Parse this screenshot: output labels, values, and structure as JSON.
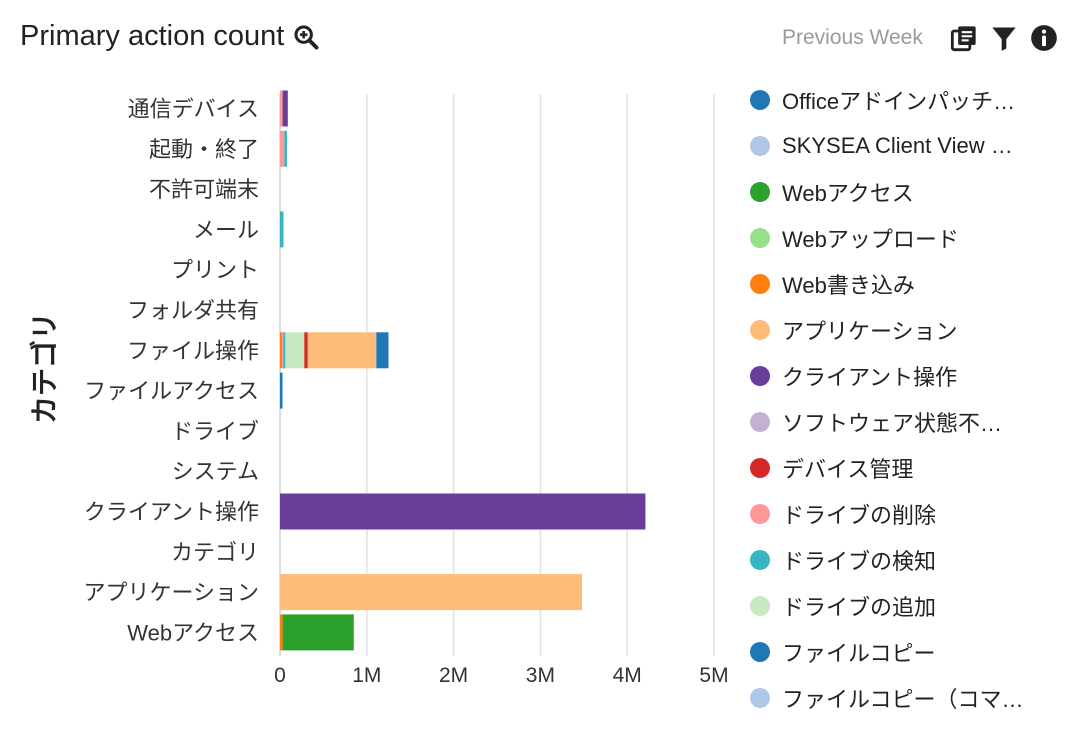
{
  "header": {
    "title": "Primary action count",
    "period": "Previous Week",
    "icons": [
      "zoom-in-icon",
      "copy-icon",
      "filter-icon",
      "info-icon"
    ],
    "icon_color": "#222222"
  },
  "chart_data": {
    "type": "bar",
    "orientation": "horizontal",
    "stacked": true,
    "ylabel": "カテゴリ",
    "xlabel": "",
    "xlim": [
      0,
      5000000
    ],
    "xticks": [
      0,
      1000000,
      2000000,
      3000000,
      4000000,
      5000000
    ],
    "xtick_labels": [
      "0",
      "1M",
      "2M",
      "3M",
      "4M",
      "5M"
    ],
    "grid": "vertical",
    "legend_position": "right",
    "categories": [
      "通信デバイス",
      "起動・終了",
      "不許可端末",
      "メール",
      "プリント",
      "フォルダ共有",
      "ファイル操作",
      "ファイルアクセス",
      "ドライブ",
      "システム",
      "クライアント操作",
      "カテゴリ",
      "アプリケーション",
      "Webアクセス"
    ],
    "series": [
      {
        "name": "Officeアドインパッチ…",
        "color": "#1f77b4",
        "values": [
          0,
          0,
          0,
          0,
          0,
          0,
          0,
          0,
          0,
          0,
          0,
          0,
          0,
          0
        ]
      },
      {
        "name": "SKYSEA Client View …",
        "color": "#aec7e8",
        "values": [
          0,
          0,
          0,
          0,
          0,
          0,
          0,
          0,
          0,
          0,
          0,
          0,
          0,
          0
        ]
      },
      {
        "name": "Webアクセス",
        "color": "#2ca02c",
        "values": [
          0,
          0,
          0,
          0,
          0,
          0,
          0,
          0,
          0,
          0,
          0,
          0,
          0,
          820000
        ]
      },
      {
        "name": "Webアップロード",
        "color": "#98df8a",
        "values": [
          0,
          0,
          0,
          0,
          0,
          0,
          0,
          0,
          0,
          0,
          0,
          0,
          0,
          0
        ]
      },
      {
        "name": "Web書き込み",
        "color": "#ff7f0e",
        "values": [
          0,
          0,
          0,
          0,
          0,
          0,
          20000,
          0,
          0,
          0,
          0,
          0,
          0,
          30000
        ]
      },
      {
        "name": "アプリケーション",
        "color": "#ffbb78",
        "values": [
          0,
          0,
          0,
          0,
          0,
          0,
          790000,
          0,
          0,
          0,
          0,
          0,
          3480000,
          0
        ]
      },
      {
        "name": "クライアント操作",
        "color": "#6a3d9a",
        "values": [
          60000,
          0,
          0,
          0,
          0,
          0,
          0,
          0,
          0,
          0,
          4210000,
          0,
          0,
          0
        ]
      },
      {
        "name": "ソフトウェア状態不…",
        "color": "#c5b0d5",
        "values": [
          0,
          0,
          0,
          0,
          0,
          0,
          0,
          0,
          0,
          0,
          0,
          0,
          0,
          0
        ]
      },
      {
        "name": "デバイス管理",
        "color": "#d62728",
        "values": [
          0,
          0,
          0,
          0,
          0,
          0,
          40000,
          0,
          0,
          0,
          0,
          0,
          0,
          0
        ]
      },
      {
        "name": "ドライブの削除",
        "color": "#ff9896",
        "values": [
          30000,
          50000,
          0,
          0,
          0,
          0,
          20000,
          0,
          0,
          0,
          0,
          0,
          0,
          0
        ]
      },
      {
        "name": "ドライブの検知",
        "color": "#36b6c1",
        "values": [
          0,
          30000,
          0,
          40000,
          0,
          0,
          20000,
          0,
          0,
          0,
          0,
          0,
          0,
          0
        ]
      },
      {
        "name": "ドライブの追加",
        "color": "#c7e9c0",
        "values": [
          0,
          0,
          0,
          0,
          0,
          0,
          220000,
          0,
          0,
          0,
          0,
          0,
          0,
          0
        ]
      },
      {
        "name": "ファイルコピー",
        "color": "#1f77b4",
        "values": [
          0,
          0,
          0,
          0,
          0,
          0,
          140000,
          20000,
          0,
          0,
          0,
          0,
          0,
          0
        ]
      },
      {
        "name": "ファイルコピー（コマ…",
        "color": "#aec7e8",
        "values": [
          0,
          0,
          0,
          0,
          0,
          0,
          0,
          0,
          0,
          0,
          0,
          0,
          0,
          0
        ]
      }
    ],
    "render_order": [
      4,
      9,
      10,
      11,
      8,
      5,
      2,
      12,
      6
    ]
  }
}
